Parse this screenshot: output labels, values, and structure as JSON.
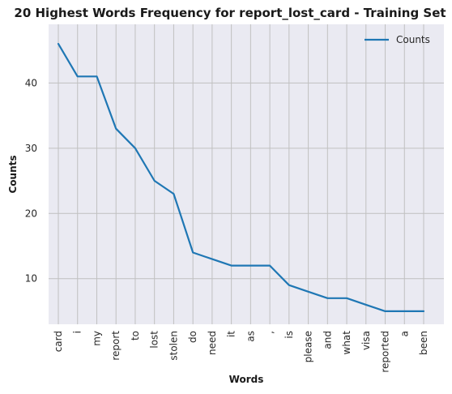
{
  "chart_data": {
    "type": "line",
    "title": "20 Highest Words Frequency for report_lost_card - Training Set",
    "xlabel": "Words",
    "ylabel": "Counts",
    "categories": [
      "card",
      "i",
      "my",
      "report",
      "to",
      "lost",
      "stolen",
      "do",
      "need",
      "it",
      "as",
      ",",
      "is",
      "please",
      "and",
      "what",
      "visa",
      "reported",
      "a",
      "been"
    ],
    "series": [
      {
        "name": "Counts",
        "values": [
          46,
          41,
          41,
          33,
          30,
          25,
          23,
          14,
          13,
          12,
          12,
          12,
          9,
          8,
          7,
          7,
          6,
          5,
          5,
          5
        ]
      }
    ],
    "ylim": [
      3,
      49
    ],
    "yticks": [
      10,
      20,
      30,
      40
    ],
    "grid": true,
    "legend_position": "top-right",
    "colors": {
      "line": "#1f77b4",
      "plot_bg": "#eaeaf2",
      "grid": "#c0c0c0"
    }
  }
}
